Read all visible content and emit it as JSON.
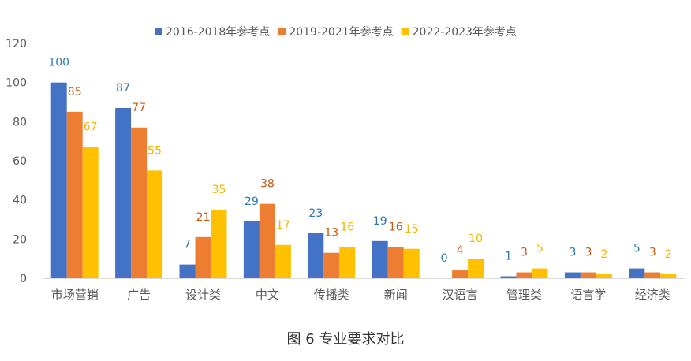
{
  "chart_data": {
    "type": "bar",
    "title": "",
    "xlabel": "",
    "ylabel": "",
    "ylim": [
      0,
      120
    ],
    "yticks": [
      0,
      20,
      40,
      60,
      80,
      100,
      120
    ],
    "grid": false,
    "legend_position": "top",
    "categories": [
      "市场营销",
      "广告",
      "设计类",
      "中文",
      "传播类",
      "新闻",
      "汉语言",
      "管理类",
      "语言学",
      "经济类"
    ],
    "series": [
      {
        "name": "2016-2018年参考点",
        "color": "#4472C4",
        "values": [
          100,
          87,
          7,
          29,
          23,
          19,
          0,
          1,
          3,
          5
        ]
      },
      {
        "name": "2019-2021年参考点",
        "color": "#ED7D31",
        "values": [
          85,
          77,
          21,
          38,
          13,
          16,
          4,
          3,
          3,
          3
        ]
      },
      {
        "name": "2022-2023年参考点",
        "color": "#FFC000",
        "values": [
          67,
          55,
          35,
          17,
          16,
          15,
          10,
          5,
          2,
          2
        ]
      }
    ],
    "label_colors": [
      "#2E75B6",
      "#C55A11",
      "#F4B400"
    ]
  },
  "caption": "图 6 专业要求对比"
}
